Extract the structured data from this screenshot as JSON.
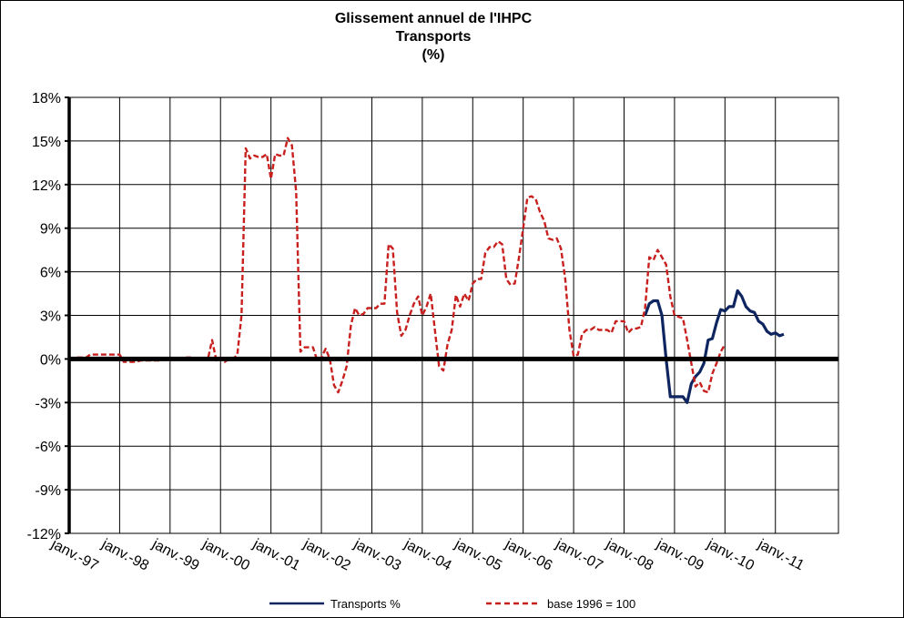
{
  "chart_data": {
    "type": "line",
    "title": "Glissement annuel de l'IHPC",
    "subtitle": "Transports",
    "unit": "(%)",
    "ylim": [
      -12,
      18
    ],
    "yticks": [
      18,
      15,
      12,
      9,
      6,
      3,
      0,
      -3,
      -6,
      -9,
      -12
    ],
    "ytick_labels": [
      "18%",
      "15%",
      "12%",
      "9%",
      "6%",
      "3%",
      "0%",
      "-3%",
      "-6%",
      "-9%",
      "-12%"
    ],
    "x_start": "janv.-97",
    "x_categories": [
      "janv.-97",
      "janv.-98",
      "janv.-99",
      "janv.-00",
      "janv.-01",
      "janv.-02",
      "janv.-03",
      "janv.-04",
      "janv.-05",
      "janv.-06",
      "janv.-07",
      "janv.-08",
      "janv.-09",
      "janv.-10",
      "janv.-11"
    ],
    "grid": true,
    "legend_position": "bottom",
    "series": [
      {
        "name": "Transports %",
        "color": "#0f2560",
        "style": "solid",
        "points": [
          [
            "2008-06",
            3.0
          ],
          [
            "2008-07",
            3.8
          ],
          [
            "2008-08",
            4.0
          ],
          [
            "2008-09",
            4.0
          ],
          [
            "2008-10",
            3.0
          ],
          [
            "2008-11",
            0.0
          ],
          [
            "2008-12",
            -2.6
          ],
          [
            "2009-01",
            -2.6
          ],
          [
            "2009-02",
            -2.6
          ],
          [
            "2009-03",
            -2.6
          ],
          [
            "2009-04",
            -3.0
          ],
          [
            "2009-05",
            -1.7
          ],
          [
            "2009-06",
            -1.2
          ],
          [
            "2009-07",
            -0.9
          ],
          [
            "2009-08",
            -0.3
          ],
          [
            "2009-09",
            1.3
          ],
          [
            "2009-10",
            1.4
          ],
          [
            "2009-11",
            2.5
          ],
          [
            "2009-12",
            3.4
          ],
          [
            "2010-01",
            3.3
          ],
          [
            "2010-02",
            3.6
          ],
          [
            "2010-03",
            3.6
          ],
          [
            "2010-04",
            4.7
          ],
          [
            "2010-05",
            4.3
          ],
          [
            "2010-06",
            3.6
          ],
          [
            "2010-07",
            3.3
          ],
          [
            "2010-08",
            3.2
          ],
          [
            "2010-09",
            2.6
          ],
          [
            "2010-10",
            2.4
          ],
          [
            "2010-11",
            1.9
          ],
          [
            "2010-12",
            1.7
          ],
          [
            "2011-01",
            1.8
          ],
          [
            "2011-02",
            1.6
          ],
          [
            "2011-03",
            1.7
          ]
        ]
      },
      {
        "name": "base 1996 = 100",
        "color": "#c8201e",
        "style": "dashed",
        "points": [
          [
            "1997-01",
            0.0
          ],
          [
            "1997-02",
            0.05
          ],
          [
            "1997-03",
            0.1
          ],
          [
            "1997-04",
            0.1
          ],
          [
            "1997-05",
            0.1
          ],
          [
            "1997-06",
            0.3
          ],
          [
            "1997-07",
            0.3
          ],
          [
            "1997-08",
            0.3
          ],
          [
            "1997-09",
            0.3
          ],
          [
            "1997-10",
            0.3
          ],
          [
            "1997-11",
            0.3
          ],
          [
            "1997-12",
            0.3
          ],
          [
            "1998-01",
            0.3
          ],
          [
            "1998-02",
            -0.2
          ],
          [
            "1998-03",
            -0.2
          ],
          [
            "1998-04",
            -0.2
          ],
          [
            "1998-05",
            -0.2
          ],
          [
            "1998-06",
            -0.1
          ],
          [
            "1998-07",
            -0.1
          ],
          [
            "1998-08",
            -0.1
          ],
          [
            "1998-09",
            -0.1
          ],
          [
            "1998-10",
            -0.1
          ],
          [
            "1998-11",
            -0.1
          ],
          [
            "1998-12",
            0.0
          ],
          [
            "1999-01",
            -0.1
          ],
          [
            "1999-02",
            0.0
          ],
          [
            "1999-03",
            0.0
          ],
          [
            "1999-04",
            0.0
          ],
          [
            "1999-05",
            0.1
          ],
          [
            "1999-06",
            0.1
          ],
          [
            "1999-07",
            0.0
          ],
          [
            "1999-08",
            0.0
          ],
          [
            "1999-09",
            0.0
          ],
          [
            "1999-10",
            0.0
          ],
          [
            "1999-11",
            1.3
          ],
          [
            "1999-12",
            -0.1
          ],
          [
            "2000-01",
            0.1
          ],
          [
            "2000-02",
            -0.2
          ],
          [
            "2000-03",
            0.0
          ],
          [
            "2000-04",
            0.0
          ],
          [
            "2000-05",
            0.3
          ],
          [
            "2000-06",
            3.0
          ],
          [
            "2000-07",
            14.5
          ],
          [
            "2000-08",
            13.8
          ],
          [
            "2000-09",
            14.0
          ],
          [
            "2000-10",
            13.9
          ],
          [
            "2000-11",
            13.9
          ],
          [
            "2000-12",
            14.1
          ],
          [
            "2001-01",
            12.4
          ],
          [
            "2001-02",
            14.1
          ],
          [
            "2001-03",
            14.0
          ],
          [
            "2001-04",
            14.0
          ],
          [
            "2001-05",
            15.2
          ],
          [
            "2001-06",
            14.7
          ],
          [
            "2001-07",
            11.5
          ],
          [
            "2001-08",
            0.5
          ],
          [
            "2001-09",
            0.8
          ],
          [
            "2001-10",
            0.8
          ],
          [
            "2001-11",
            0.8
          ],
          [
            "2001-12",
            -0.1
          ],
          [
            "2002-01",
            0.1
          ],
          [
            "2002-02",
            0.7
          ],
          [
            "2002-03",
            0.0
          ],
          [
            "2002-04",
            -1.8
          ],
          [
            "2002-05",
            -2.3
          ],
          [
            "2002-06",
            -1.5
          ],
          [
            "2002-07",
            -0.5
          ],
          [
            "2002-08",
            2.3
          ],
          [
            "2002-09",
            3.5
          ],
          [
            "2002-10",
            3.0
          ],
          [
            "2002-11",
            3.1
          ],
          [
            "2002-12",
            3.5
          ],
          [
            "2003-01",
            3.5
          ],
          [
            "2003-02",
            3.5
          ],
          [
            "2003-03",
            3.8
          ],
          [
            "2003-04",
            3.8
          ],
          [
            "2003-05",
            7.9
          ],
          [
            "2003-06",
            7.6
          ],
          [
            "2003-07",
            3.2
          ],
          [
            "2003-08",
            1.6
          ],
          [
            "2003-09",
            2.0
          ],
          [
            "2003-10",
            3.0
          ],
          [
            "2003-11",
            3.8
          ],
          [
            "2003-12",
            4.3
          ],
          [
            "2004-01",
            3.0
          ],
          [
            "2004-02",
            3.6
          ],
          [
            "2004-03",
            4.5
          ],
          [
            "2004-04",
            2.0
          ],
          [
            "2004-05",
            -0.5
          ],
          [
            "2004-06",
            -0.8
          ],
          [
            "2004-07",
            1.0
          ],
          [
            "2004-08",
            2.0
          ],
          [
            "2004-09",
            4.4
          ],
          [
            "2004-10",
            3.6
          ],
          [
            "2004-11",
            4.5
          ],
          [
            "2004-12",
            4.0
          ],
          [
            "2005-01",
            5.2
          ],
          [
            "2005-02",
            5.5
          ],
          [
            "2005-03",
            5.5
          ],
          [
            "2005-04",
            7.3
          ],
          [
            "2005-05",
            7.7
          ],
          [
            "2005-06",
            7.7
          ],
          [
            "2005-07",
            8.1
          ],
          [
            "2005-08",
            7.9
          ],
          [
            "2005-09",
            5.5
          ],
          [
            "2005-10",
            5.1
          ],
          [
            "2005-11",
            5.2
          ],
          [
            "2005-12",
            7.0
          ],
          [
            "2006-01",
            9.0
          ],
          [
            "2006-02",
            11.1
          ],
          [
            "2006-03",
            11.2
          ],
          [
            "2006-04",
            11.0
          ],
          [
            "2006-05",
            10.1
          ],
          [
            "2006-06",
            9.5
          ],
          [
            "2006-07",
            8.3
          ],
          [
            "2006-08",
            8.2
          ],
          [
            "2006-09",
            8.3
          ],
          [
            "2006-10",
            7.6
          ],
          [
            "2006-11",
            5.5
          ],
          [
            "2006-12",
            2.0
          ],
          [
            "2007-01",
            0.2
          ],
          [
            "2007-02",
            0.3
          ],
          [
            "2007-03",
            1.7
          ],
          [
            "2007-04",
            2.0
          ],
          [
            "2007-05",
            2.0
          ],
          [
            "2007-06",
            2.2
          ],
          [
            "2007-07",
            2.0
          ],
          [
            "2007-08",
            2.0
          ],
          [
            "2007-09",
            2.0
          ],
          [
            "2007-10",
            1.8
          ],
          [
            "2007-11",
            2.6
          ],
          [
            "2007-12",
            2.6
          ],
          [
            "2008-01",
            2.6
          ],
          [
            "2008-02",
            1.8
          ],
          [
            "2008-03",
            2.1
          ],
          [
            "2008-04",
            2.1
          ],
          [
            "2008-05",
            2.2
          ],
          [
            "2008-06",
            3.5
          ],
          [
            "2008-07",
            7.0
          ],
          [
            "2008-08",
            6.8
          ],
          [
            "2008-09",
            7.5
          ],
          [
            "2008-10",
            7.0
          ],
          [
            "2008-11",
            6.5
          ],
          [
            "2008-12",
            4.3
          ],
          [
            "2009-01",
            3.0
          ],
          [
            "2009-02",
            2.9
          ],
          [
            "2009-03",
            2.8
          ],
          [
            "2009-04",
            1.3
          ],
          [
            "2009-05",
            -0.3
          ],
          [
            "2009-06",
            -1.9
          ],
          [
            "2009-07",
            -1.6
          ],
          [
            "2009-08",
            -2.2
          ],
          [
            "2009-09",
            -2.3
          ],
          [
            "2009-10",
            -1.0
          ],
          [
            "2009-11",
            -0.3
          ],
          [
            "2009-12",
            0.5
          ],
          [
            "2010-01",
            1.0
          ]
        ]
      }
    ]
  }
}
